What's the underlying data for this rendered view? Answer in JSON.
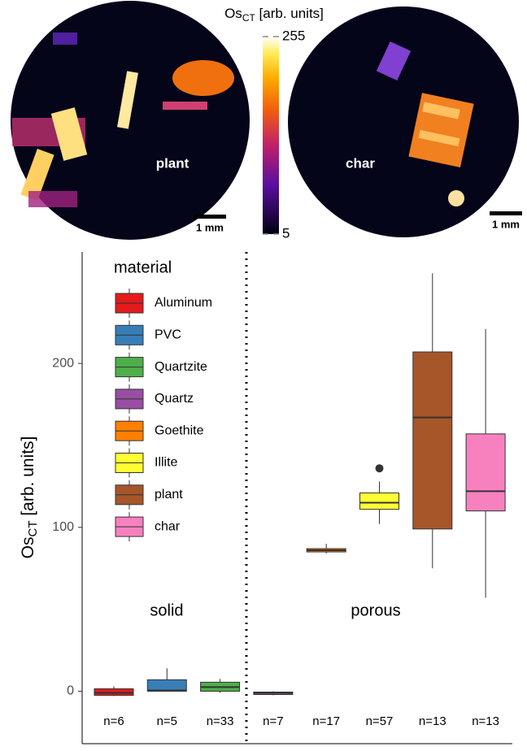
{
  "chart_data": {
    "type": "box",
    "y_label": {
      "main": "Os",
      "sub": "CT",
      "rest": " [arb. units]"
    },
    "ylim": [
      -32,
      268
    ],
    "yticks": [
      0,
      100,
      200
    ],
    "legend_title": "material",
    "annotations": [
      "solid",
      "porous"
    ],
    "series": [
      {
        "name": "Aluminum",
        "color": "#e41a1c",
        "min": -3,
        "q1": -2.5,
        "median": -1,
        "q3": 1.5,
        "max": 3,
        "outliers": [],
        "n_label": "n=6"
      },
      {
        "name": "PVC",
        "color": "#377eb8",
        "min": 0,
        "q1": 0,
        "median": 0.5,
        "q3": 7,
        "max": 14,
        "outliers": [],
        "n_label": "n=5"
      },
      {
        "name": "Quartzite",
        "color": "#4daf4a",
        "min": -1,
        "q1": 0,
        "median": 2.5,
        "q3": 5.5,
        "max": 7.5,
        "outliers": [],
        "n_label": "n=33"
      },
      {
        "name": "Quartz",
        "color": "#984ea3",
        "min": -2.5,
        "q1": -2,
        "median": -1,
        "q3": -0.5,
        "max": 0,
        "outliers": [],
        "n_label": "n=7"
      },
      {
        "name": "Goethite",
        "color": "#ff7f00",
        "min": 84,
        "q1": 85,
        "median": 86,
        "q3": 87,
        "max": 90,
        "outliers": [],
        "n_label": "n=17"
      },
      {
        "name": "Illite",
        "color": "#ffff33",
        "min": 102,
        "q1": 111,
        "median": 115,
        "q3": 121,
        "max": 128,
        "outliers": [
          136
        ],
        "n_label": "n=57"
      },
      {
        "name": "plant",
        "color": "#a65628",
        "min": 75,
        "q1": 99,
        "median": 167,
        "q3": 207,
        "max": 255,
        "outliers": [],
        "n_label": "n=13"
      },
      {
        "name": "char",
        "color": "#f781bf",
        "min": 57,
        "q1": 110,
        "median": 122,
        "q3": 157,
        "max": 221,
        "outliers": [],
        "n_label": "n=13"
      }
    ],
    "colorbar": {
      "title_main": "Os",
      "title_sub": "CT",
      "title_rest": " [arb. units]",
      "lim": [
        5,
        255
      ],
      "ticks": [
        5,
        255
      ]
    },
    "panels": [
      {
        "label": "plant",
        "scale": "1 mm"
      },
      {
        "label": "char",
        "scale": "1 mm"
      }
    ]
  }
}
